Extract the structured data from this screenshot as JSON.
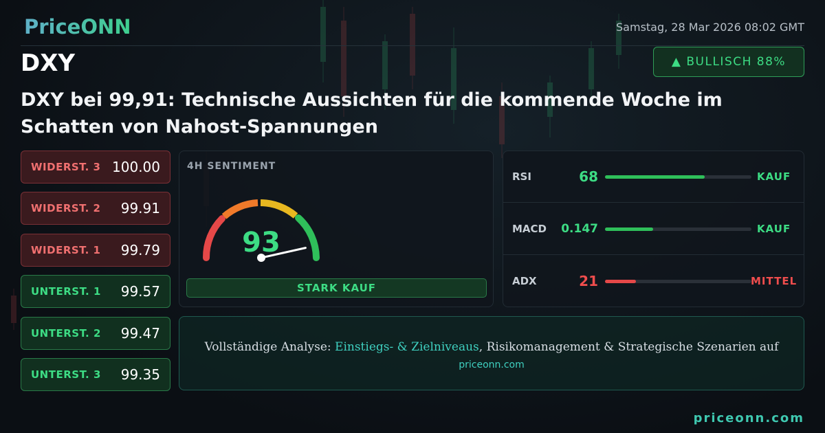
{
  "header": {
    "logo": "PriceONN",
    "date": "Samstag, 28 Mar 2026 08:02 GMT",
    "symbol": "DXY",
    "badge": "▲ BULLISCH 88%"
  },
  "headline": [
    "DXY bei 99,91: Technische Aussichten für die kommende Woche im",
    "Schatten von Nahost-Spannungen"
  ],
  "levels": [
    {
      "label": "WIDERST. 3",
      "value": "100.00"
    },
    {
      "label": "WIDERST. 2",
      "value": "99.91"
    },
    {
      "label": "WIDERST. 1",
      "value": "99.79"
    },
    {
      "label": "UNTERST. 1",
      "value": "99.57"
    },
    {
      "label": "UNTERST. 2",
      "value": "99.47"
    },
    {
      "label": "UNTERST. 3",
      "value": "99.35"
    }
  ],
  "sentiment": {
    "label": "4H SENTIMENT",
    "score": 93,
    "signal": "STARK KAUF"
  },
  "indicators": [
    {
      "name": "RSI",
      "value": 68,
      "signal": "KAUF"
    },
    {
      "name": "MACD",
      "value": 0.147,
      "signal": "KAUF"
    },
    {
      "name": "ADX",
      "value": 21,
      "signal": "MITTEL"
    }
  ],
  "cta": {
    "before": "Vollständige Analyse:",
    "highlight": "Einstiegs- & Zielniveaus",
    "after": ", Risikomanagement & Strategische Szenarien auf",
    "link": "priceonn.com"
  },
  "footer": {
    "url": "priceonn.com"
  }
}
